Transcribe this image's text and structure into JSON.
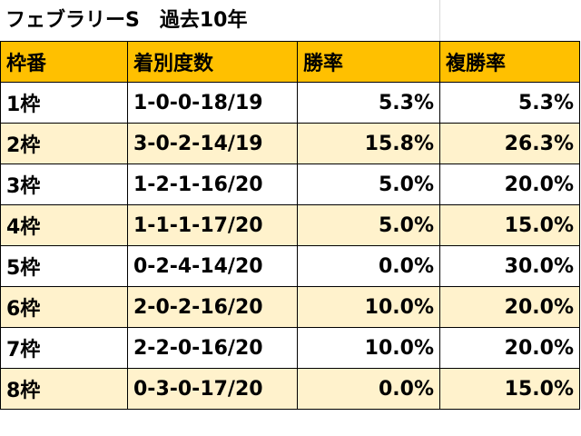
{
  "title": "フェブラリーS　過去10年",
  "colors": {
    "header_bg": "#ffc000",
    "alt_row_bg": "#fff2cc",
    "row_bg": "#ffffff"
  },
  "columns": [
    "枠番",
    "着別度数",
    "勝率",
    "複勝率"
  ],
  "rows": [
    {
      "gate": "1枠",
      "record": "1-0-0-18/19",
      "win": "5.3%",
      "place": "5.3%"
    },
    {
      "gate": "2枠",
      "record": "3-0-2-14/19",
      "win": "15.8%",
      "place": "26.3%"
    },
    {
      "gate": "3枠",
      "record": "1-2-1-16/20",
      "win": "5.0%",
      "place": "20.0%"
    },
    {
      "gate": "4枠",
      "record": "1-1-1-17/20",
      "win": "5.0%",
      "place": "15.0%"
    },
    {
      "gate": "5枠",
      "record": "0-2-4-14/20",
      "win": "0.0%",
      "place": "30.0%"
    },
    {
      "gate": "6枠",
      "record": "2-0-2-16/20",
      "win": "10.0%",
      "place": "20.0%"
    },
    {
      "gate": "7枠",
      "record": "2-2-0-16/20",
      "win": "10.0%",
      "place": "20.0%"
    },
    {
      "gate": "8枠",
      "record": "0-3-0-17/20",
      "win": "0.0%",
      "place": "15.0%"
    }
  ]
}
